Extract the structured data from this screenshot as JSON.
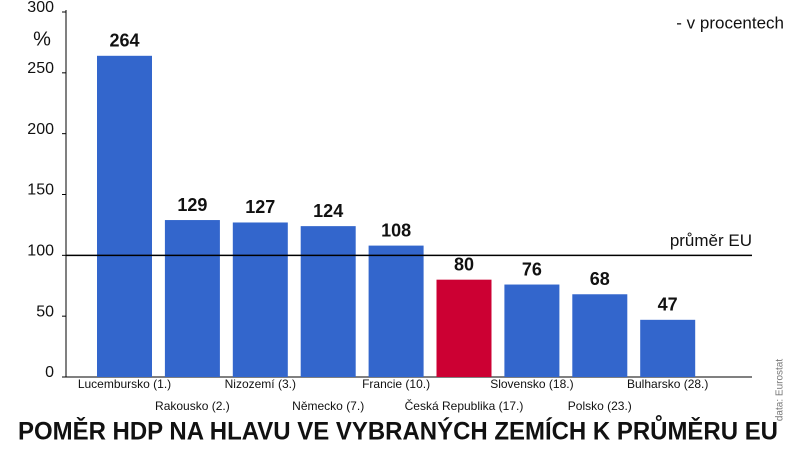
{
  "chart_data": {
    "type": "bar",
    "title": "POMĚR HDP NA HLAVU VE VYBRANÝCH ZEMÍCH K PRŮMĚRU EU",
    "subtitle": "- v procentech",
    "y_label": "%",
    "source": "data: Eurostat",
    "categories": [
      "Lucembursko (1.)",
      "Rakousko (2.)",
      "Nizozemí (3.)",
      "Německo (7.)",
      "Francie (10.)",
      "Česká Republika (17.)",
      "Slovensko (18.)",
      "Polsko (23.)",
      "Bulharsko (28.)"
    ],
    "values": [
      264,
      129,
      127,
      124,
      108,
      80,
      76,
      68,
      47
    ],
    "colors": [
      "#3366cc",
      "#3366cc",
      "#3366cc",
      "#3366cc",
      "#3366cc",
      "#cc0033",
      "#3366cc",
      "#3366cc",
      "#3366cc"
    ],
    "ylim": [
      0,
      300
    ],
    "yticks": [
      0,
      50,
      100,
      150,
      200,
      250,
      300
    ],
    "reference": {
      "value": 100,
      "label": "průměr EU"
    }
  }
}
